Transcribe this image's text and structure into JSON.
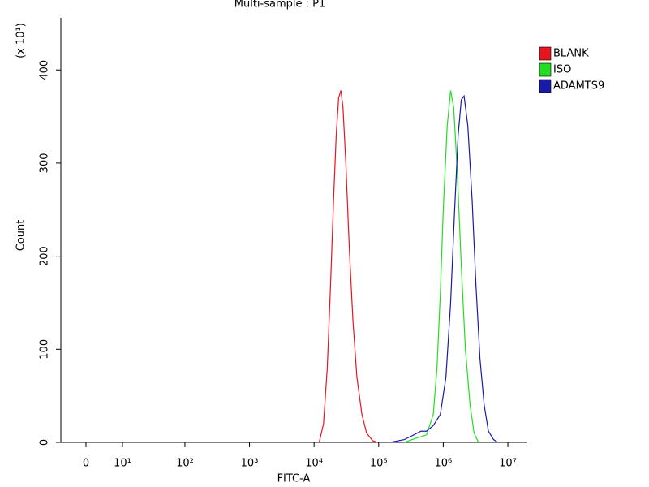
{
  "chart_data": {
    "type": "line",
    "title": "Multi-sample : P1",
    "x_label": "FITC-A",
    "y_label": "Count",
    "y_multiplier": "(x 10¹)",
    "x_scale": "biexponential",
    "xlim": [
      -6,
      20000000
    ],
    "ylim": [
      0,
      456
    ],
    "xticks": [
      0,
      {
        "value": 10,
        "label": "10¹"
      },
      {
        "value": 100,
        "label": "10²"
      },
      {
        "value": 1000,
        "label": "10³"
      },
      {
        "value": 10000,
        "label": "10⁴"
      },
      {
        "value": 100000,
        "label": "10⁵"
      },
      {
        "value": 1000000,
        "label": "10⁶"
      },
      {
        "value": 10000000,
        "label": "10⁷"
      }
    ],
    "yticks": [
      0,
      100,
      200,
      300,
      400
    ],
    "series": [
      {
        "name": "BLANK",
        "color": "#e8141e",
        "x": [
          12000,
          14000,
          16000,
          18000,
          20000,
          22000,
          24000,
          26000,
          28000,
          31000,
          35000,
          40000,
          46000,
          55000,
          65000,
          80000,
          95000
        ],
        "values": [
          0,
          20,
          80,
          170,
          260,
          330,
          370,
          378,
          360,
          300,
          210,
          130,
          70,
          30,
          10,
          2,
          0
        ]
      },
      {
        "name": "ISO",
        "color": "#22dd22",
        "x": [
          250000,
          400000,
          550000,
          700000,
          800000,
          900000,
          1000000,
          1150000,
          1300000,
          1450000,
          1650000,
          1900000,
          2200000,
          2600000,
          3000000,
          3500000
        ],
        "values": [
          0,
          5,
          8,
          30,
          80,
          160,
          250,
          340,
          378,
          360,
          290,
          190,
          100,
          40,
          10,
          0
        ]
      },
      {
        "name": "ADAMTS9",
        "color": "#1a1aa8",
        "x": [
          150000,
          250000,
          350000,
          450000,
          550000,
          700000,
          900000,
          1100000,
          1300000,
          1500000,
          1700000,
          1900000,
          2100000,
          2400000,
          2800000,
          3200000,
          3700000,
          4300000,
          5000000,
          6000000,
          7000000
        ],
        "values": [
          0,
          3,
          8,
          12,
          12,
          18,
          30,
          70,
          150,
          250,
          330,
          368,
          372,
          340,
          260,
          170,
          90,
          40,
          12,
          3,
          0
        ]
      }
    ]
  }
}
